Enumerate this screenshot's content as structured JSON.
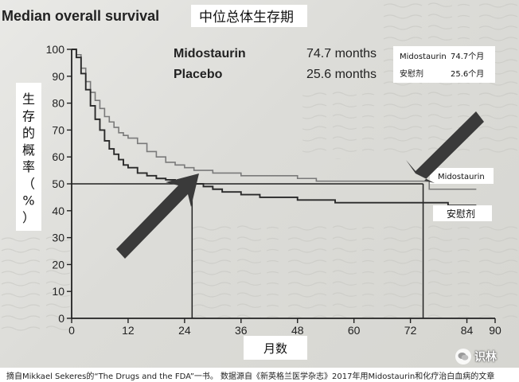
{
  "chart_data": {
    "type": "line",
    "title": "Median overall survival",
    "title_cn": "中位总体生存期",
    "xlabel": "月数",
    "ylabel": "生存的概率（%）",
    "x_ticks": [
      0,
      12,
      24,
      36,
      48,
      60,
      72,
      84,
      90
    ],
    "y_ticks": [
      0,
      10,
      20,
      30,
      40,
      50,
      60,
      70,
      80,
      90,
      100
    ],
    "xlim": [
      0,
      90
    ],
    "ylim": [
      0,
      100
    ],
    "grid": false,
    "medians": {
      "rows": [
        {
          "name": "Midostaurin",
          "value": "74.7 months"
        },
        {
          "name": "Placebo",
          "value": "25.6 months"
        }
      ],
      "cn_rows": [
        {
          "name": "Midostaurin",
          "value": "74.7个月"
        },
        {
          "name": "安慰剂",
          "value": "25.6个月"
        }
      ]
    },
    "series": [
      {
        "name": "Midostaurin",
        "label": "Midostaurin",
        "color": "#7a7a7a",
        "points": [
          [
            0,
            100
          ],
          [
            1,
            98
          ],
          [
            2,
            93
          ],
          [
            3,
            88
          ],
          [
            4,
            84
          ],
          [
            5,
            81
          ],
          [
            6,
            78
          ],
          [
            7,
            75
          ],
          [
            8,
            73
          ],
          [
            9,
            71
          ],
          [
            10,
            69
          ],
          [
            11,
            68
          ],
          [
            12,
            67
          ],
          [
            14,
            65
          ],
          [
            16,
            62
          ],
          [
            18,
            60
          ],
          [
            20,
            58
          ],
          [
            22,
            57
          ],
          [
            24,
            56
          ],
          [
            26,
            55
          ],
          [
            28,
            55
          ],
          [
            30,
            54
          ],
          [
            33,
            54
          ],
          [
            36,
            53
          ],
          [
            40,
            53
          ],
          [
            44,
            53
          ],
          [
            48,
            52
          ],
          [
            52,
            51
          ],
          [
            56,
            51
          ],
          [
            60,
            51
          ],
          [
            64,
            51
          ],
          [
            68,
            51
          ],
          [
            72,
            51
          ],
          [
            74.7,
            51
          ],
          [
            76,
            48
          ],
          [
            80,
            48
          ],
          [
            84,
            48
          ],
          [
            86,
            48
          ]
        ]
      },
      {
        "name": "Placebo",
        "label": "安慰剂",
        "color": "#2a2a2a",
        "points": [
          [
            0,
            100
          ],
          [
            1,
            97
          ],
          [
            2,
            91
          ],
          [
            3,
            85
          ],
          [
            4,
            79
          ],
          [
            5,
            74
          ],
          [
            6,
            70
          ],
          [
            7,
            66
          ],
          [
            8,
            63
          ],
          [
            9,
            61
          ],
          [
            10,
            59
          ],
          [
            11,
            57
          ],
          [
            12,
            56
          ],
          [
            14,
            54
          ],
          [
            16,
            53
          ],
          [
            18,
            52
          ],
          [
            20,
            51.5
          ],
          [
            22,
            51
          ],
          [
            24,
            50.5
          ],
          [
            25.6,
            50
          ],
          [
            28,
            49
          ],
          [
            30,
            48
          ],
          [
            32,
            47
          ],
          [
            36,
            46
          ],
          [
            40,
            45
          ],
          [
            44,
            45
          ],
          [
            48,
            44
          ],
          [
            52,
            44
          ],
          [
            56,
            43
          ],
          [
            60,
            43
          ],
          [
            64,
            43
          ],
          [
            68,
            43
          ],
          [
            72,
            43
          ],
          [
            76,
            43
          ],
          [
            80,
            42
          ],
          [
            84,
            42
          ],
          [
            86,
            42
          ]
        ]
      }
    ],
    "median_line_y": 50,
    "median_markers_x": [
      25.6,
      74.7
    ]
  },
  "footer": {
    "text": "摘自Mikkael Sekeres的“The Drugs and the FDA”一书。  数据源自《新英格兰医学杂志》2017年用Midostaurin和化疗治白血病的文章"
  },
  "watermark": {
    "text": "识林",
    "icon": "wechat-icon"
  }
}
